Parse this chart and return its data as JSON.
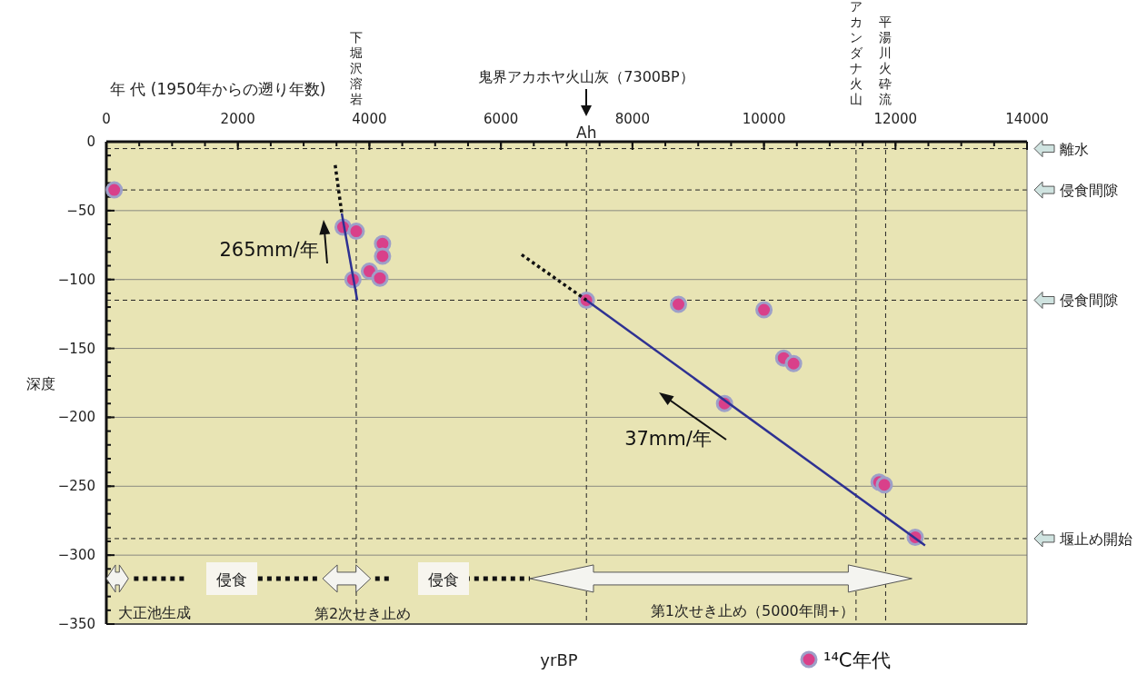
{
  "chart_data": {
    "type": "scatter",
    "xlabel": "年 代 (1950年からの遡り年数)",
    "ylabel": "深度",
    "xlim": [
      0,
      14000
    ],
    "xticks": [
      0,
      2000,
      4000,
      6000,
      8000,
      10000,
      12000,
      14000
    ],
    "ylim": [
      -350,
      0
    ],
    "yticks": [
      0,
      -50,
      -100,
      -150,
      -200,
      -250,
      -300,
      -350
    ],
    "grid": "y",
    "legend": "bottom right",
    "marker": "circle",
    "series": [
      {
        "name": "¹⁴C年代",
        "type": "scatter",
        "color": "#d9408a",
        "x": [
          120,
          3600,
          3800,
          3750,
          4000,
          4200,
          4200,
          4160,
          7300,
          8700,
          10000,
          10300,
          10450,
          9400,
          11750,
          11830,
          12300
        ],
        "values": [
          -35,
          -62,
          -65,
          -100,
          -94,
          -74,
          -83,
          -99,
          -115,
          -118,
          -122,
          -157,
          -161,
          -190,
          -247,
          -249,
          -287
        ]
      },
      {
        "type": "line",
        "color": "#2e3192",
        "line_style": "solid",
        "marker": "none",
        "x": [
          3580,
          3815
        ],
        "values": [
          -52,
          -115
        ]
      },
      {
        "type": "line",
        "color": "#111111",
        "line_style": "dotted",
        "marker": "none",
        "x": [
          3480,
          3580
        ],
        "values": [
          -17,
          -52
        ]
      },
      {
        "type": "line",
        "color": "#2e3192",
        "line_style": "solid",
        "marker": "none",
        "x": [
          7300,
          12450
        ],
        "values": [
          -115,
          -293
        ]
      },
      {
        "type": "line",
        "color": "#111111",
        "line_style": "dotted",
        "marker": "none",
        "x": [
          6315,
          7300
        ],
        "values": [
          -82,
          -115
        ]
      }
    ],
    "ref_lines": [
      {
        "axis": "y",
        "value": -5,
        "label": "離水"
      },
      {
        "axis": "y",
        "value": -35,
        "label": "侵食間隙"
      },
      {
        "axis": "y",
        "value": -115,
        "label": "侵食間隙"
      },
      {
        "axis": "y",
        "value": -288,
        "label": "堰止め開始"
      },
      {
        "axis": "x",
        "value": 3800,
        "label": "下堀沢溶岩"
      },
      {
        "axis": "x",
        "value": 7300,
        "label": "Ah"
      },
      {
        "axis": "x",
        "value": 11400,
        "label": "アカンダナ火山"
      },
      {
        "axis": "x",
        "value": 11850,
        "label": "平湯川火砕流"
      }
    ],
    "annotations": [
      "鬼界アカホヤ火山灰（7300BP）",
      "265mm/年",
      "37mm/年",
      "侵食",
      "侵食",
      "大正池生成",
      "第2次せき止め",
      "第1次せき止め（5000年間+）",
      "yrBP"
    ]
  }
}
